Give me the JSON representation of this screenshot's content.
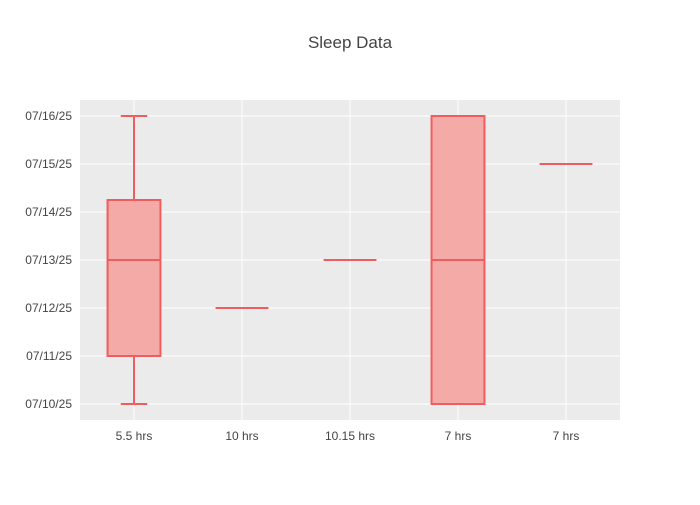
{
  "chart_data": {
    "type": "box",
    "title": "Sleep Data",
    "xlabel": "",
    "ylabel": "",
    "categories": [
      "5.5 hrs",
      "10 hrs",
      "10.15 hrs",
      "7 hrs",
      "7 hrs"
    ],
    "y_axis_type": "date",
    "ylim": [
      "07/09/25 16:00",
      "07/16/25 08:00"
    ],
    "y_ticks": [
      "07/10/25",
      "07/11/25",
      "07/12/25",
      "07/13/25",
      "07/14/25",
      "07/15/25",
      "07/16/25"
    ],
    "grid": true,
    "legend": "none",
    "boxes": [
      {
        "category": "5.5 hrs",
        "min": "07/10/25",
        "q1": "07/11/25",
        "median": "07/13/25",
        "q3": "07/14/25 06:00",
        "max": "07/16/25"
      },
      {
        "category": "10 hrs",
        "min": "07/12/25",
        "q1": "07/12/25",
        "median": "07/12/25",
        "q3": "07/12/25",
        "max": "07/12/25"
      },
      {
        "category": "10.15 hrs",
        "min": "07/13/25",
        "q1": "07/13/25",
        "median": "07/13/25",
        "q3": "07/13/25",
        "max": "07/13/25"
      },
      {
        "category": "7 hrs",
        "min": "07/10/25",
        "q1": "07/10/25",
        "median": "07/13/25",
        "q3": "07/16/25",
        "max": "07/16/25"
      },
      {
        "category": "7 hrs",
        "min": "07/15/25",
        "q1": "07/15/25",
        "median": "07/15/25",
        "q3": "07/15/25",
        "max": "07/15/25"
      }
    ],
    "colors": {
      "box_line": "#f05d5e",
      "box_fill": "#f4aaa6",
      "plot_bg": "#ebebeb",
      "grid": "#ffffff",
      "text": "#444444"
    }
  }
}
